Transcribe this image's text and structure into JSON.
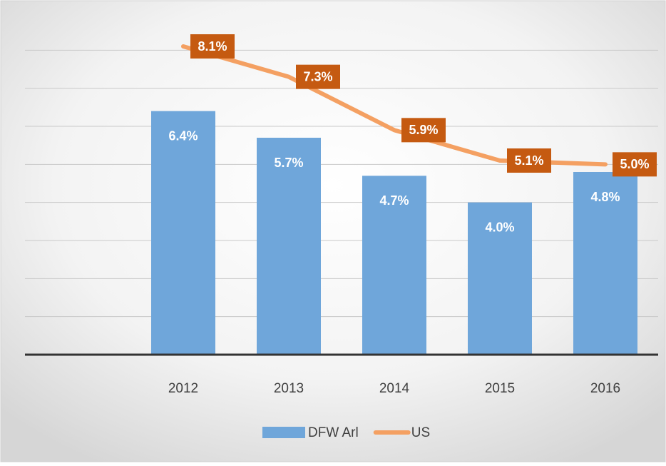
{
  "chart_data": {
    "type": "bar-line",
    "categories": [
      null,
      "2012",
      "2013",
      "2014",
      "2015",
      "2016"
    ],
    "series": [
      {
        "name": "DFW Arl",
        "type": "bar",
        "color": "#6fa6da",
        "values": [
          null,
          6.4,
          5.7,
          4.7,
          4.0,
          4.8
        ],
        "value_labels": [
          null,
          "6.4%",
          "5.7%",
          "4.7%",
          "4.0%",
          "4.8%"
        ]
      },
      {
        "name": "US",
        "type": "line",
        "color": "#f4a062",
        "label_color": "#c55a11",
        "values": [
          null,
          8.1,
          7.3,
          5.9,
          5.1,
          5.0
        ],
        "value_labels": [
          null,
          "8.1%",
          "7.3%",
          "5.9%",
          "5.1%",
          "5.0%"
        ]
      }
    ],
    "ylim": [
      0,
      9
    ],
    "yticks": [
      0,
      1,
      2,
      3,
      4,
      5,
      6,
      7,
      8
    ],
    "grid": true,
    "legend": "bottom"
  }
}
